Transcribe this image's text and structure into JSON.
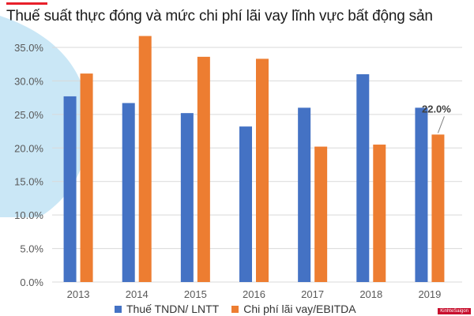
{
  "title": "Thuế suất thực đóng và mức chi phí lãi vay lĩnh vực bất động sản",
  "watermark": "KinhteSaigon",
  "colors": {
    "accent": "#e8202a",
    "series1": "#4472c4",
    "series2": "#ed7d31",
    "gridline": "#d9d9d9",
    "axis_text": "#595959",
    "decoration": "#9fd4ef"
  },
  "chart_data": {
    "type": "bar",
    "categories": [
      "2013",
      "2014",
      "2015",
      "2016",
      "2017",
      "2018",
      "2019"
    ],
    "series": [
      {
        "name": "Thuế TNDN/ LNTT",
        "values": [
          27.7,
          26.7,
          25.2,
          23.2,
          26.0,
          31.0,
          26.0
        ]
      },
      {
        "name": "Chi phí lãi vay/EBITDA",
        "values": [
          31.1,
          36.7,
          33.6,
          33.3,
          20.2,
          20.5,
          22.0
        ]
      }
    ],
    "ylim": [
      0,
      35
    ],
    "yticks": [
      "0.0%",
      "5.0%",
      "10.0%",
      "15.0%",
      "20.0%",
      "25.0%",
      "30.0%",
      "35.0%"
    ],
    "annotations": [
      {
        "series": 1,
        "index": 6,
        "text": "22.0%"
      }
    ],
    "grid": true,
    "legend": "bottom"
  }
}
